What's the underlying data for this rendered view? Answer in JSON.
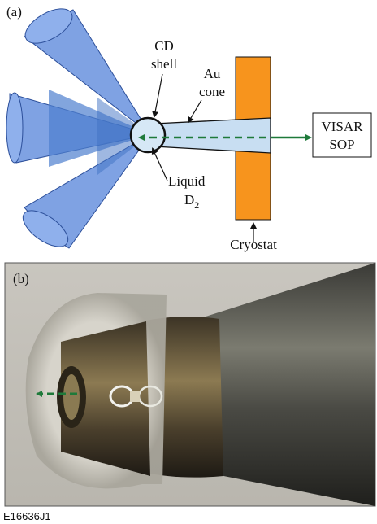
{
  "panel_a": {
    "label": "(a)",
    "cd_shell": [
      "CD",
      "shell"
    ],
    "au_cone": [
      "Au",
      "cone"
    ],
    "visar_sop": [
      "VISAR",
      "SOP"
    ],
    "liquid_d2": {
      "line1": "Liquid",
      "line2": "D",
      "subscript": "2"
    },
    "cryostat": "Cryostat"
  },
  "panel_b": {
    "label": "(b)"
  },
  "figure_id": "E16636J1"
}
